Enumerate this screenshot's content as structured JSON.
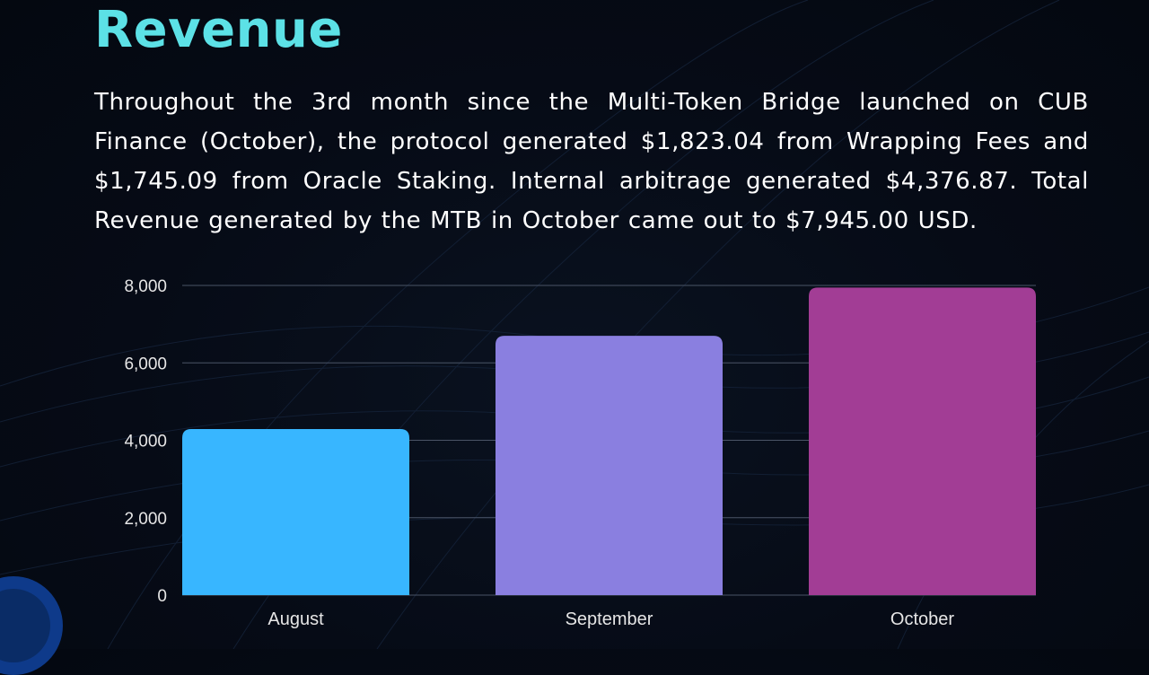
{
  "page": {
    "title": "Revenue",
    "body": "Throughout the 3rd month since the Multi-Token Bridge launched on CUB Finance (October), the protocol generated $1,823.04 from Wrapping Fees and $1,745.09 from Oracle Staking. Internal arbitrage generated $4,376.87. Total Revenue generated by the MTB in October came out to $7,945.00 USD."
  },
  "colors": {
    "title": "#5ce1e6",
    "text": "#ffffff",
    "axis_text": "#e6e6e6",
    "grid": "#4a5466",
    "bars": [
      "#38b6ff",
      "#8a7fe0",
      "#a23d95"
    ]
  },
  "chart_data": {
    "type": "bar",
    "categories": [
      "August",
      "September",
      "October"
    ],
    "values": [
      4290,
      6700,
      7945
    ],
    "ylim": [
      0,
      8000
    ],
    "yticks": [
      0,
      2000,
      4000,
      6000,
      8000
    ],
    "ytick_labels": [
      "0",
      "2,000",
      "4,000",
      "6,000",
      "8,000"
    ],
    "grid": true,
    "legend": "none"
  }
}
